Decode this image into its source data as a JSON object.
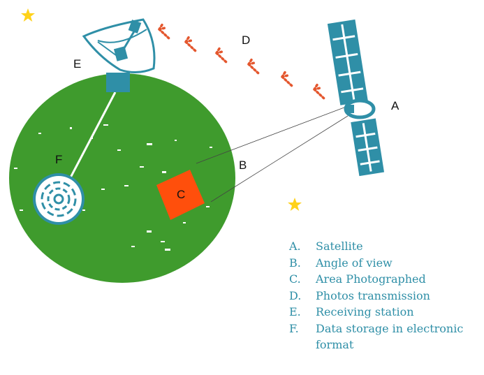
{
  "colors": {
    "earth": "#3f9b2d",
    "satellite": "#2f8fa7",
    "signal": "#e4572e",
    "area": "#ff4f0c",
    "star": "#ffd21a",
    "legend_text": "#2f8fa7"
  },
  "icons": {
    "satellite": "satellite-icon",
    "dish": "satellite-dish-icon",
    "storage": "disc-storage-icon",
    "star": "star-icon"
  },
  "labels": {
    "a": "A",
    "b": "B",
    "c": "C",
    "d": "D",
    "e": "E",
    "f": "F"
  },
  "legend": [
    {
      "key": "A.",
      "text": "Satellite"
    },
    {
      "key": "B.",
      "text": "Angle of view"
    },
    {
      "key": "C.",
      "text": "Area Photographed"
    },
    {
      "key": "D.",
      "text": "Photos transmission"
    },
    {
      "key": "E.",
      "text": "Receiving station"
    },
    {
      "key": "F.",
      "text": "Data storage in electronic format"
    }
  ]
}
